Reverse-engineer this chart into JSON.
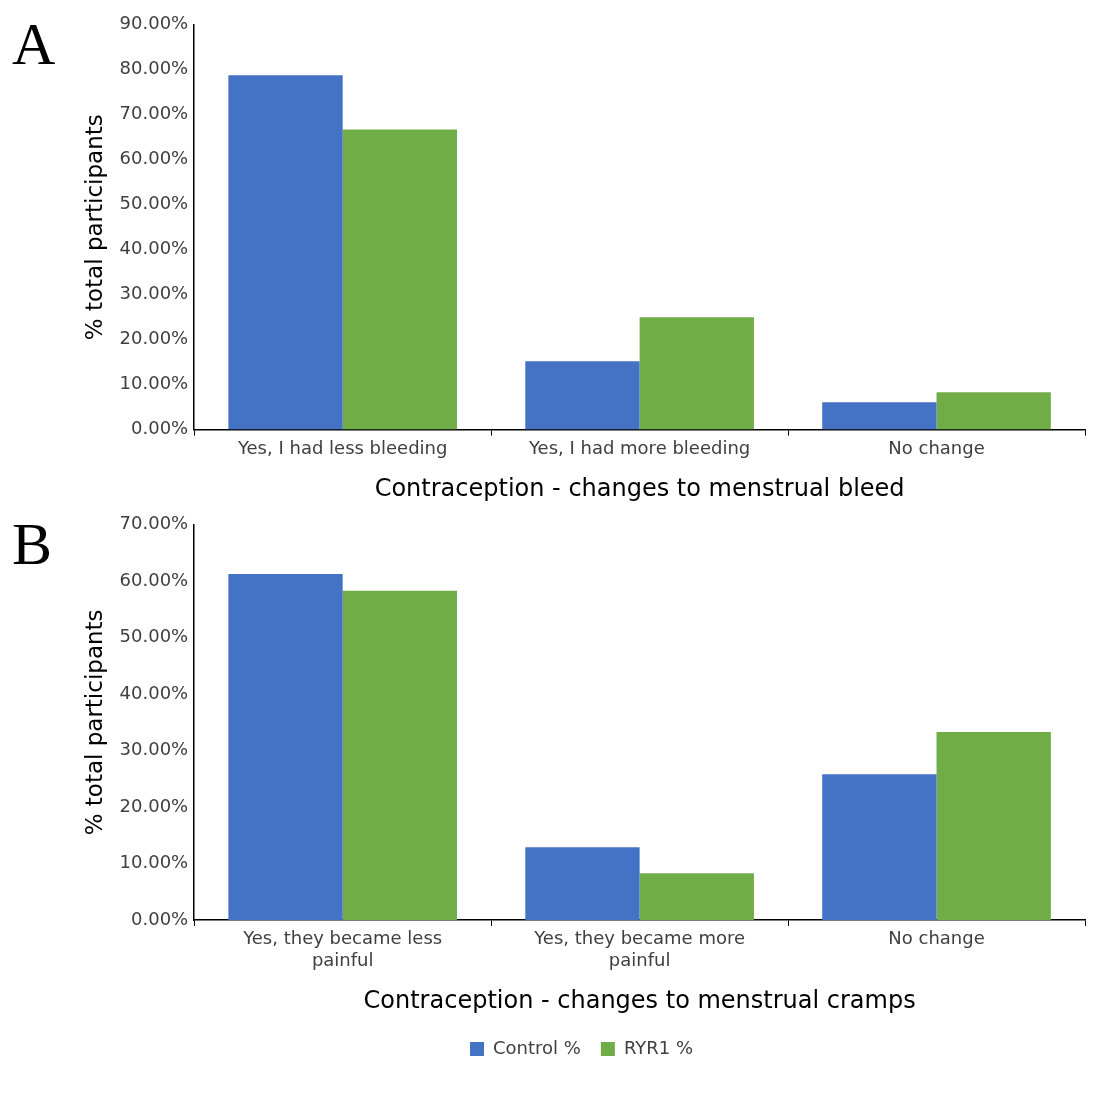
{
  "chart_data": [
    {
      "type": "bar",
      "xlabel": "Contraception - changes to menstrual bleed",
      "ylabel": "% total participants",
      "annotations": [
        "A"
      ],
      "categories": [
        "Yes, I had less bleeding",
        "Yes, I had more bleeding",
        "No change"
      ],
      "series": [
        {
          "color": "#4472c4",
          "values": [
            78.8,
            15.2,
            6.1
          ]
        },
        {
          "color": "#70ad47",
          "values": [
            66.7,
            25,
            8.3
          ]
        }
      ],
      "ylim": [
        0,
        90
      ],
      "yticks": [
        {
          "value": 0,
          "label": "0.00%"
        },
        {
          "value": 10,
          "label": "10.00%"
        },
        {
          "value": 20,
          "label": "20.00%"
        },
        {
          "value": 30,
          "label": "30.00%"
        },
        {
          "value": 40,
          "label": "40.00%"
        },
        {
          "value": 50,
          "label": "50.00%"
        },
        {
          "value": 60,
          "label": "60.00%"
        },
        {
          "value": 70,
          "label": "70.00%"
        },
        {
          "value": 80,
          "label": "80.00%"
        },
        {
          "value": 90,
          "label": "90.00%"
        }
      ],
      "grid": false,
      "legend": false
    },
    {
      "type": "bar",
      "xlabel": "Contraception - changes to menstrual cramps",
      "ylabel": "% total participants",
      "annotations": [
        "B"
      ],
      "categories": [
        "Yes, they became less painful",
        "Yes, they became more painful",
        "No change"
      ],
      "series": [
        {
          "name": "Control %",
          "color": "#4472c4",
          "values": [
            61.3,
            12.9,
            25.8
          ]
        },
        {
          "name": "RYR1 %",
          "color": "#70ad47",
          "values": [
            58.3,
            8.3,
            33.3
          ]
        }
      ],
      "ylim": [
        0,
        70
      ],
      "yticks": [
        {
          "value": 0,
          "label": "0.00%"
        },
        {
          "value": 10,
          "label": "10.00%"
        },
        {
          "value": 20,
          "label": "20.00%"
        },
        {
          "value": 30,
          "label": "30.00%"
        },
        {
          "value": 40,
          "label": "40.00%"
        },
        {
          "value": 50,
          "label": "50.00%"
        },
        {
          "value": 60,
          "label": "60.00%"
        },
        {
          "value": 70,
          "label": "70.00%"
        }
      ],
      "grid": false,
      "legend": "bottom"
    }
  ]
}
